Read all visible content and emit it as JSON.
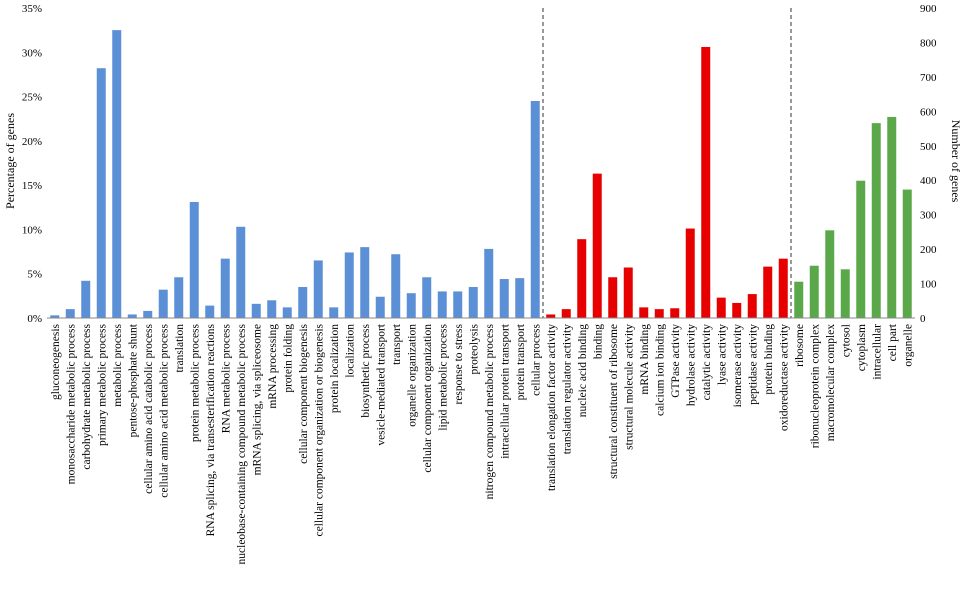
{
  "chart_data": {
    "type": "bar",
    "title": "",
    "ylabel": "Percentage of genes",
    "y2label": "Number of genes",
    "ylim": [
      0,
      35
    ],
    "y2lim": [
      0,
      900
    ],
    "yticks": [
      "0%",
      "5%",
      "10%",
      "15%",
      "20%",
      "25%",
      "30%",
      "35%"
    ],
    "y2ticks": [
      "0",
      "100",
      "200",
      "300",
      "400",
      "500",
      "600",
      "700",
      "800",
      "900"
    ],
    "grid": false,
    "legend": "none",
    "colors": {
      "biological_process": "#5b8fd6",
      "molecular_function": "#e60000",
      "cellular_component": "#5ba84b"
    },
    "series": [
      {
        "group": "biological_process",
        "color": "#5b8fd6",
        "categories": [
          "gluconeogenesis",
          "monosaccharide metabolic process",
          "carbohydrate metabolic process",
          "primary metabolic process",
          "metabolic process",
          "pentose-phosphate shunt",
          "cellular amino acid catabolic process",
          "cellular amino acid metabolic process",
          "translation",
          "protein metabolic process",
          "RNA splicing, via transesterification reactions",
          "RNA metabolic process",
          "nucleobase-containing compound metabolic process",
          "mRNA splicing, via spliceosome",
          "mRNA processing",
          "protein folding",
          "cellular component biogenesis",
          "cellular component organization or biogenesis",
          "protein localization",
          "localization",
          "biosynthetic process",
          "vesicle-mediated transport",
          "transport",
          "organelle organization",
          "cellular component organization",
          "lipid metabolic process",
          "response to stress",
          "proteolysis",
          "nitrogen compound metabolic process",
          "intracellular protein transport",
          "protein transport",
          "cellular process"
        ],
        "values": [
          0.3,
          1.0,
          4.2,
          28.2,
          32.5,
          0.4,
          0.8,
          3.2,
          4.6,
          13.1,
          1.4,
          6.7,
          10.3,
          1.6,
          2.0,
          1.2,
          3.5,
          6.5,
          1.2,
          7.4,
          8.0,
          2.4,
          7.2,
          2.8,
          4.6,
          3.0,
          3.0,
          3.5,
          7.8,
          4.4,
          4.5,
          24.5
        ]
      },
      {
        "group": "molecular_function",
        "color": "#e60000",
        "categories": [
          "translation elongation factor activity",
          "translation regulator activity",
          "nucleic acid binding",
          "binding",
          "structural constituent of ribosome",
          "structural molecule activity",
          "mRNA binding",
          "calcium ion binding",
          "GTPase activity",
          "hydrolase activity",
          "catalytic activity",
          "lyase activity",
          "isomerase activity",
          "peptidase activity",
          "protein binding",
          "oxidoreductase activity"
        ],
        "values": [
          0.4,
          1.0,
          8.9,
          16.3,
          4.6,
          5.7,
          1.2,
          1.0,
          1.1,
          10.1,
          30.6,
          2.3,
          1.7,
          2.7,
          5.8,
          6.7
        ]
      },
      {
        "group": "cellular_component",
        "color": "#5ba84b",
        "categories": [
          "ribosome",
          "ribonucleoprotein complex",
          "macromolecular complex",
          "cytosol",
          "cytoplasm",
          "intracellular",
          "cell part",
          "organelle"
        ],
        "values": [
          4.1,
          5.9,
          9.9,
          5.5,
          15.5,
          22.0,
          22.7,
          14.5
        ]
      }
    ]
  }
}
